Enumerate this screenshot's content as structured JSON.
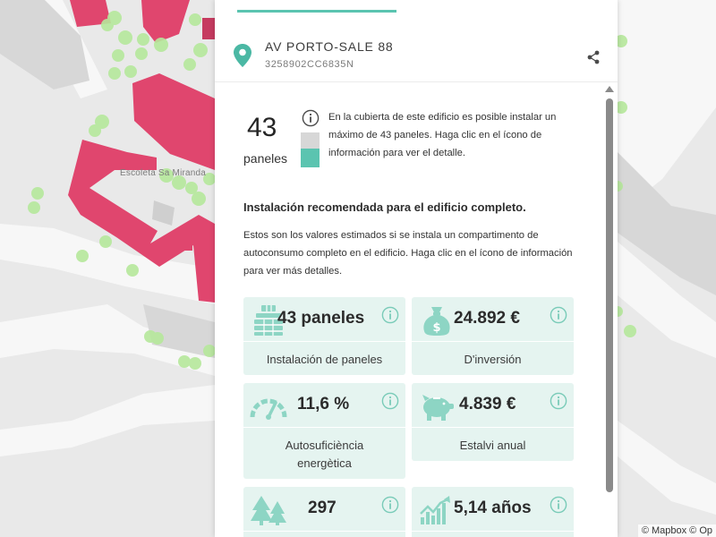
{
  "map": {
    "poi_label": "Escoleta Sa Miranda",
    "attribution": "© Mapbox © Op"
  },
  "address": {
    "title": "AV PORTO-SALE 88",
    "reference": "3258902CC6835N"
  },
  "summary": {
    "panel_count": "43",
    "panel_label": "paneles",
    "text": "En la cubierta de este edificio es posible instalar un máximo de 43 paneles. Haga clic en el ícono de información para ver el detalle."
  },
  "installation": {
    "title": "Instalación recomendada para el edificio completo.",
    "text": "Estos son los valores estimados si se instala un compartimento de autoconsumo completo en el edificio. Haga clic en el ícono de información para ver más detalles."
  },
  "cards": [
    {
      "value": "43 paneles",
      "label": "Instalación de paneles",
      "icon": "solar-panel-icon"
    },
    {
      "value": "24.892 €",
      "label": "D'inversión",
      "icon": "money-bag-icon"
    },
    {
      "value": "11,6 %",
      "label": "Autosuficiència energètica",
      "icon": "gauge-icon"
    },
    {
      "value": "4.839 €",
      "label": "Estalvi anual",
      "icon": "piggy-bank-icon"
    },
    {
      "value": "297",
      "label": "",
      "icon": "trees-icon"
    },
    {
      "value": "5,14 años",
      "label": "",
      "icon": "growth-chart-icon"
    }
  ],
  "colors": {
    "accent": "#5bc4b0",
    "card_bg": "#e5f4f0",
    "building": "#e0466e",
    "tree": "#b6e89c"
  }
}
